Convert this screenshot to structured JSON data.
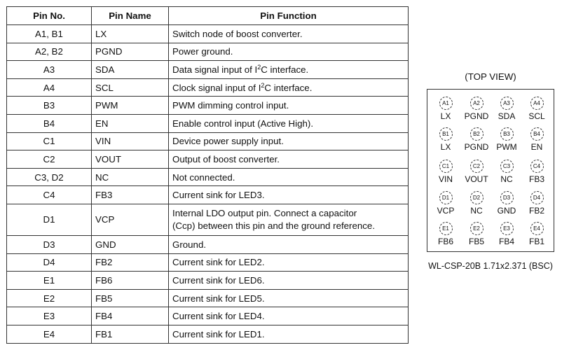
{
  "table": {
    "headers": [
      "Pin No.",
      "Pin Name",
      "Pin Function"
    ],
    "rows": [
      {
        "no": "A1, B1",
        "name": "LX",
        "fn": "Switch node of boost converter."
      },
      {
        "no": "A2, B2",
        "name": "PGND",
        "fn": "Power ground."
      },
      {
        "no": "A3",
        "name": "SDA",
        "fn": "Data signal input of I",
        "fn_sup": "2",
        "fn_post": "C interface."
      },
      {
        "no": "A4",
        "name": "SCL",
        "fn": "Clock signal input of I",
        "fn_sup": "2",
        "fn_post": "C interface."
      },
      {
        "no": "B3",
        "name": "PWM",
        "fn": "PWM dimming control input."
      },
      {
        "no": "B4",
        "name": "EN",
        "fn": "Enable control input (Active High)."
      },
      {
        "no": "C1",
        "name": "VIN",
        "fn": "Device power supply input."
      },
      {
        "no": "C2",
        "name": "VOUT",
        "fn": "Output of boost converter."
      },
      {
        "no": "C3, D2",
        "name": "NC",
        "fn": "Not connected."
      },
      {
        "no": "C4",
        "name": "FB3",
        "fn": "Current sink for LED3."
      },
      {
        "no": "D1",
        "name": "VCP",
        "fn": "Internal LDO output pin. Connect a capacitor",
        "fn_line2": "(Ccp) between this pin and the ground reference."
      },
      {
        "no": "D3",
        "name": "GND",
        "fn": "Ground."
      },
      {
        "no": "D4",
        "name": "FB2",
        "fn": "Current sink for LED2."
      },
      {
        "no": "E1",
        "name": "FB6",
        "fn": "Current sink for LED6."
      },
      {
        "no": "E2",
        "name": "FB5",
        "fn": "Current sink for LED5."
      },
      {
        "no": "E3",
        "name": "FB4",
        "fn": "Current sink for LED4."
      },
      {
        "no": "E4",
        "name": "FB1",
        "fn": "Current sink for LED1."
      }
    ]
  },
  "diagram": {
    "title": "(TOP VIEW)",
    "caption": "WL-CSP-20B 1.71x2.371 (BSC)",
    "grid": [
      [
        [
          "A1",
          "LX"
        ],
        [
          "A2",
          "PGND"
        ],
        [
          "A3",
          "SDA"
        ],
        [
          "A4",
          "SCL"
        ]
      ],
      [
        [
          "B1",
          "LX"
        ],
        [
          "B2",
          "PGND"
        ],
        [
          "B3",
          "PWM"
        ],
        [
          "B4",
          "EN"
        ]
      ],
      [
        [
          "C1",
          "VIN"
        ],
        [
          "C2",
          "VOUT"
        ],
        [
          "C3",
          "NC"
        ],
        [
          "C4",
          "FB3"
        ]
      ],
      [
        [
          "D1",
          "VCP"
        ],
        [
          "D2",
          "NC"
        ],
        [
          "D3",
          "GND"
        ],
        [
          "D4",
          "FB2"
        ]
      ],
      [
        [
          "E1",
          "FB6"
        ],
        [
          "E2",
          "FB5"
        ],
        [
          "E3",
          "FB4"
        ],
        [
          "E4",
          "FB1"
        ]
      ]
    ]
  }
}
